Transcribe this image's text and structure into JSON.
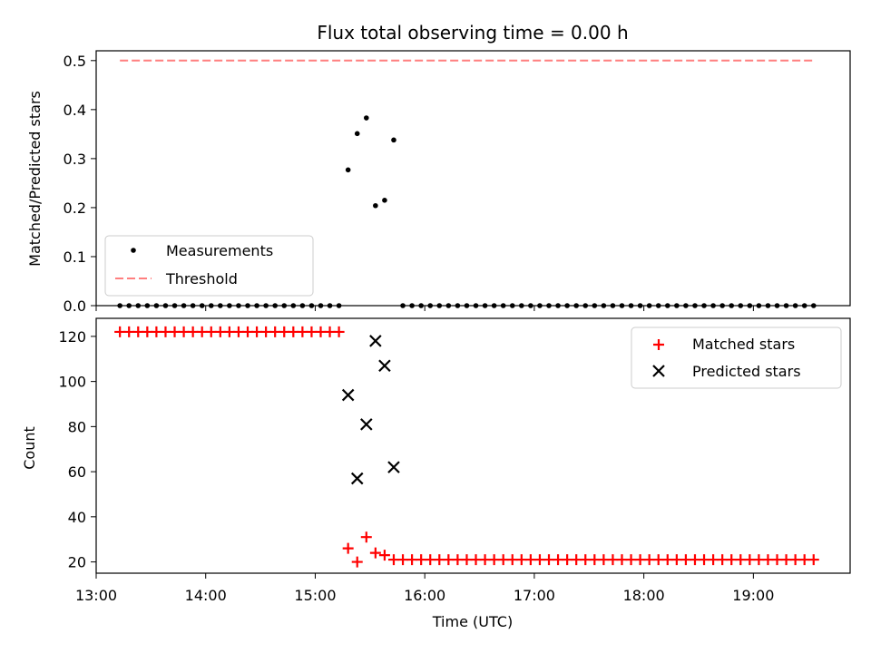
{
  "chart_data": [
    {
      "type": "scatter",
      "title": "Flux total observing time = 0.00 h",
      "ylabel": "Matched/Predicted stars",
      "xlabel": "",
      "xlim": [
        "13:00",
        "19:53"
      ],
      "ylim": [
        0,
        0.52
      ],
      "yticks": [
        "0.0",
        "0.1",
        "0.2",
        "0.3",
        "0.4",
        "0.5"
      ],
      "legend_position": "lower-left",
      "series": [
        {
          "name": "Measurements",
          "marker": "dot",
          "color": "#000000",
          "points": [
            [
              "13:13",
              0
            ],
            [
              "13:18",
              0
            ],
            [
              "13:23",
              0
            ],
            [
              "13:28",
              0
            ],
            [
              "13:33",
              0
            ],
            [
              "13:38",
              0
            ],
            [
              "13:43",
              0
            ],
            [
              "13:48",
              0
            ],
            [
              "13:53",
              0
            ],
            [
              "13:58",
              0
            ],
            [
              "14:03",
              0
            ],
            [
              "14:08",
              0
            ],
            [
              "14:13",
              0
            ],
            [
              "14:18",
              0
            ],
            [
              "14:23",
              0
            ],
            [
              "14:28",
              0
            ],
            [
              "14:33",
              0
            ],
            [
              "14:38",
              0
            ],
            [
              "14:43",
              0
            ],
            [
              "14:48",
              0
            ],
            [
              "14:53",
              0
            ],
            [
              "14:58",
              0
            ],
            [
              "15:03",
              0
            ],
            [
              "15:08",
              0
            ],
            [
              "15:13",
              0
            ],
            [
              "15:18",
              0.277
            ],
            [
              "15:23",
              0.351
            ],
            [
              "15:28",
              0.383
            ],
            [
              "15:33",
              0.204
            ],
            [
              "15:38",
              0.215
            ],
            [
              "15:43",
              0.338
            ],
            [
              "15:48",
              0
            ],
            [
              "15:53",
              0
            ],
            [
              "15:58",
              0
            ],
            [
              "16:03",
              0
            ],
            [
              "16:08",
              0
            ],
            [
              "16:13",
              0
            ],
            [
              "16:18",
              0
            ],
            [
              "16:23",
              0
            ],
            [
              "16:28",
              0
            ],
            [
              "16:33",
              0
            ],
            [
              "16:38",
              0
            ],
            [
              "16:43",
              0
            ],
            [
              "16:48",
              0
            ],
            [
              "16:53",
              0
            ],
            [
              "16:58",
              0
            ],
            [
              "17:03",
              0
            ],
            [
              "17:08",
              0
            ],
            [
              "17:13",
              0
            ],
            [
              "17:18",
              0
            ],
            [
              "17:23",
              0
            ],
            [
              "17:28",
              0
            ],
            [
              "17:33",
              0
            ],
            [
              "17:38",
              0
            ],
            [
              "17:43",
              0
            ],
            [
              "17:48",
              0
            ],
            [
              "17:53",
              0
            ],
            [
              "17:58",
              0
            ],
            [
              "18:03",
              0
            ],
            [
              "18:08",
              0
            ],
            [
              "18:13",
              0
            ],
            [
              "18:18",
              0
            ],
            [
              "18:23",
              0
            ],
            [
              "18:28",
              0
            ],
            [
              "18:33",
              0
            ],
            [
              "18:38",
              0
            ],
            [
              "18:43",
              0
            ],
            [
              "18:48",
              0
            ],
            [
              "18:53",
              0
            ],
            [
              "18:58",
              0
            ],
            [
              "19:03",
              0
            ],
            [
              "19:08",
              0
            ],
            [
              "19:13",
              0
            ],
            [
              "19:18",
              0
            ],
            [
              "19:23",
              0
            ],
            [
              "19:28",
              0
            ],
            [
              "19:33",
              0
            ]
          ]
        },
        {
          "name": "Threshold",
          "marker": "dashed-line",
          "color": "#ff7f7f",
          "points": [
            [
              "13:13",
              0.5
            ],
            [
              "19:33",
              0.5
            ]
          ]
        }
      ]
    },
    {
      "type": "scatter",
      "title": "",
      "ylabel": "Count",
      "xlabel": "Time (UTC)",
      "xlim": [
        "13:00",
        "19:53"
      ],
      "ylim": [
        15,
        128
      ],
      "yticks": [
        "20",
        "40",
        "60",
        "80",
        "100",
        "120"
      ],
      "xticks": [
        "13:00",
        "14:00",
        "15:00",
        "16:00",
        "17:00",
        "18:00",
        "19:00"
      ],
      "legend_position": "upper-right",
      "series": [
        {
          "name": "Matched stars",
          "marker": "plus",
          "color": "#ff0000",
          "points": [
            [
              "13:13",
              122
            ],
            [
              "13:18",
              122
            ],
            [
              "13:23",
              122
            ],
            [
              "13:28",
              122
            ],
            [
              "13:33",
              122
            ],
            [
              "13:38",
              122
            ],
            [
              "13:43",
              122
            ],
            [
              "13:48",
              122
            ],
            [
              "13:53",
              122
            ],
            [
              "13:58",
              122
            ],
            [
              "14:03",
              122
            ],
            [
              "14:08",
              122
            ],
            [
              "14:13",
              122
            ],
            [
              "14:18",
              122
            ],
            [
              "14:23",
              122
            ],
            [
              "14:28",
              122
            ],
            [
              "14:33",
              122
            ],
            [
              "14:38",
              122
            ],
            [
              "14:43",
              122
            ],
            [
              "14:48",
              122
            ],
            [
              "14:53",
              122
            ],
            [
              "14:58",
              122
            ],
            [
              "15:03",
              122
            ],
            [
              "15:08",
              122
            ],
            [
              "15:13",
              122
            ],
            [
              "15:18",
              26
            ],
            [
              "15:23",
              20
            ],
            [
              "15:28",
              31
            ],
            [
              "15:33",
              24
            ],
            [
              "15:38",
              23
            ],
            [
              "15:43",
              21
            ],
            [
              "15:48",
              21
            ],
            [
              "15:53",
              21
            ],
            [
              "15:58",
              21
            ],
            [
              "16:03",
              21
            ],
            [
              "16:08",
              21
            ],
            [
              "16:13",
              21
            ],
            [
              "16:18",
              21
            ],
            [
              "16:23",
              21
            ],
            [
              "16:28",
              21
            ],
            [
              "16:33",
              21
            ],
            [
              "16:38",
              21
            ],
            [
              "16:43",
              21
            ],
            [
              "16:48",
              21
            ],
            [
              "16:53",
              21
            ],
            [
              "16:58",
              21
            ],
            [
              "17:03",
              21
            ],
            [
              "17:08",
              21
            ],
            [
              "17:13",
              21
            ],
            [
              "17:18",
              21
            ],
            [
              "17:23",
              21
            ],
            [
              "17:28",
              21
            ],
            [
              "17:33",
              21
            ],
            [
              "17:38",
              21
            ],
            [
              "17:43",
              21
            ],
            [
              "17:48",
              21
            ],
            [
              "17:53",
              21
            ],
            [
              "17:58",
              21
            ],
            [
              "18:03",
              21
            ],
            [
              "18:08",
              21
            ],
            [
              "18:13",
              21
            ],
            [
              "18:18",
              21
            ],
            [
              "18:23",
              21
            ],
            [
              "18:28",
              21
            ],
            [
              "18:33",
              21
            ],
            [
              "18:38",
              21
            ],
            [
              "18:43",
              21
            ],
            [
              "18:48",
              21
            ],
            [
              "18:53",
              21
            ],
            [
              "18:58",
              21
            ],
            [
              "19:03",
              21
            ],
            [
              "19:08",
              21
            ],
            [
              "19:13",
              21
            ],
            [
              "19:18",
              21
            ],
            [
              "19:23",
              21
            ],
            [
              "19:28",
              21
            ],
            [
              "19:33",
              21
            ]
          ]
        },
        {
          "name": "Predicted stars",
          "marker": "x",
          "color": "#000000",
          "points": [
            [
              "15:18",
              94
            ],
            [
              "15:23",
              57
            ],
            [
              "15:28",
              81
            ],
            [
              "15:33",
              118
            ],
            [
              "15:38",
              107
            ],
            [
              "15:43",
              62
            ]
          ]
        }
      ]
    }
  ]
}
